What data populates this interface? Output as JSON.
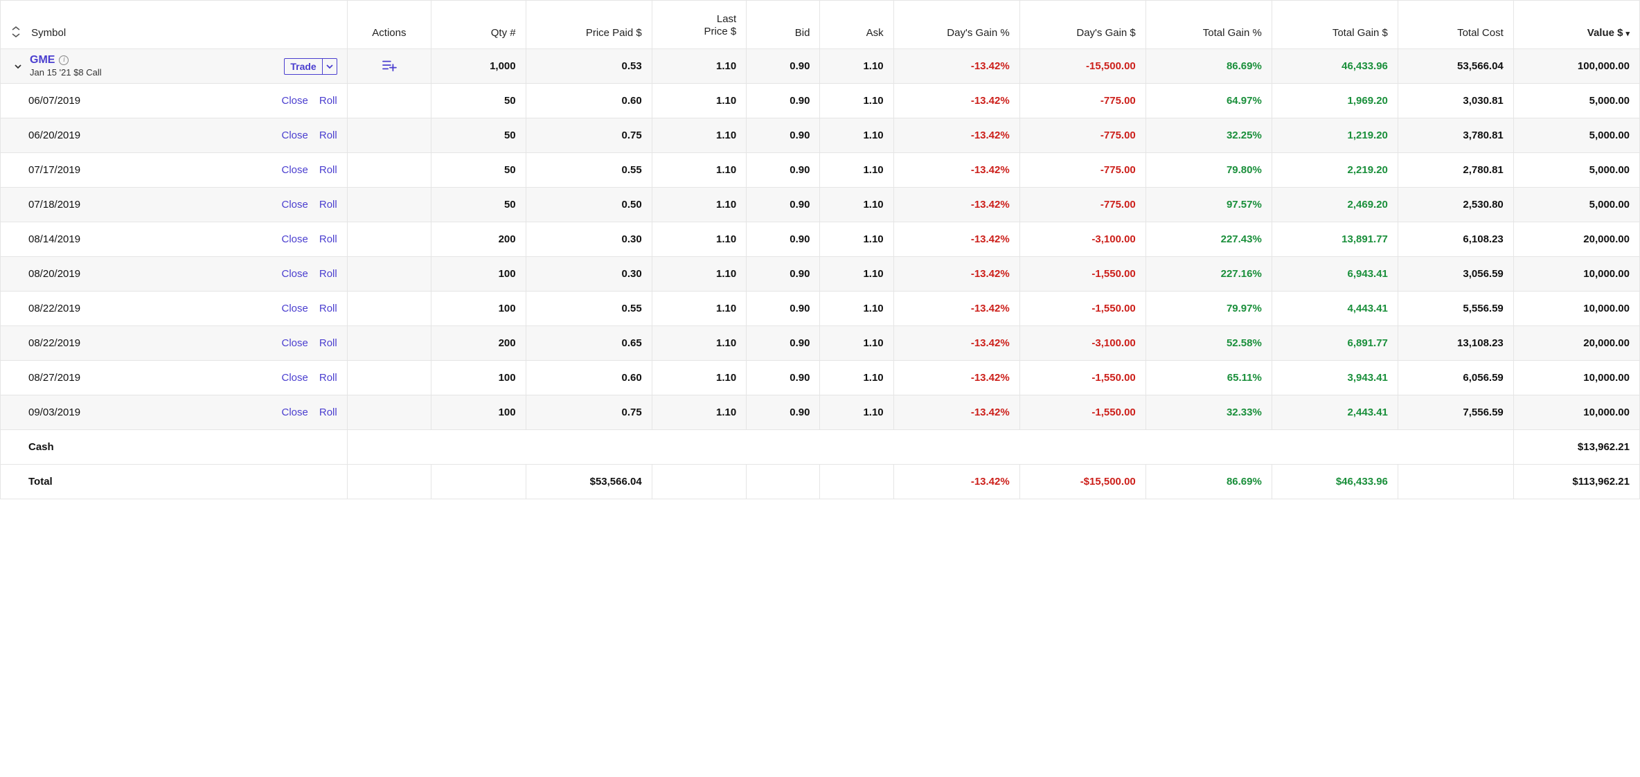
{
  "columns": {
    "symbol": "Symbol",
    "actions": "Actions",
    "qty": "Qty #",
    "price_paid": "Price Paid $",
    "last_price_line1": "Last",
    "last_price_line2": "Price $",
    "bid": "Bid",
    "ask": "Ask",
    "day_gain_pct": "Day's Gain %",
    "day_gain_usd": "Day's Gain $",
    "total_gain_pct": "Total Gain %",
    "total_gain_usd": "Total Gain $",
    "total_cost": "Total Cost",
    "value": "Value $",
    "sort_caret": "▾"
  },
  "actions": {
    "trade": "Trade",
    "close": "Close",
    "roll": "Roll"
  },
  "colors": {
    "link": "#4a3ecf",
    "neg": "#cc1f1a",
    "pos": "#1a8f3b",
    "border": "#e5e5e5",
    "stripe": "#f7f7f7",
    "text": "#111111"
  },
  "parent": {
    "ticker": "GME",
    "description": "Jan 15 '21 $8 Call",
    "qty": "1,000",
    "price_paid": "0.53",
    "last": "1.10",
    "bid": "0.90",
    "ask": "1.10",
    "day_gain_pct": "-13.42%",
    "day_gain_usd": "-15,500.00",
    "total_gain_pct": "86.69%",
    "total_gain_usd": "46,433.96",
    "total_cost": "53,566.04",
    "value": "100,000.00"
  },
  "lots": [
    {
      "date": "06/07/2019",
      "qty": "50",
      "price_paid": "0.60",
      "last": "1.10",
      "bid": "0.90",
      "ask": "1.10",
      "day_gain_pct": "-13.42%",
      "day_gain_usd": "-775.00",
      "total_gain_pct": "64.97%",
      "total_gain_usd": "1,969.20",
      "total_cost": "3,030.81",
      "value": "5,000.00"
    },
    {
      "date": "06/20/2019",
      "qty": "50",
      "price_paid": "0.75",
      "last": "1.10",
      "bid": "0.90",
      "ask": "1.10",
      "day_gain_pct": "-13.42%",
      "day_gain_usd": "-775.00",
      "total_gain_pct": "32.25%",
      "total_gain_usd": "1,219.20",
      "total_cost": "3,780.81",
      "value": "5,000.00"
    },
    {
      "date": "07/17/2019",
      "qty": "50",
      "price_paid": "0.55",
      "last": "1.10",
      "bid": "0.90",
      "ask": "1.10",
      "day_gain_pct": "-13.42%",
      "day_gain_usd": "-775.00",
      "total_gain_pct": "79.80%",
      "total_gain_usd": "2,219.20",
      "total_cost": "2,780.81",
      "value": "5,000.00"
    },
    {
      "date": "07/18/2019",
      "qty": "50",
      "price_paid": "0.50",
      "last": "1.10",
      "bid": "0.90",
      "ask": "1.10",
      "day_gain_pct": "-13.42%",
      "day_gain_usd": "-775.00",
      "total_gain_pct": "97.57%",
      "total_gain_usd": "2,469.20",
      "total_cost": "2,530.80",
      "value": "5,000.00"
    },
    {
      "date": "08/14/2019",
      "qty": "200",
      "price_paid": "0.30",
      "last": "1.10",
      "bid": "0.90",
      "ask": "1.10",
      "day_gain_pct": "-13.42%",
      "day_gain_usd": "-3,100.00",
      "total_gain_pct": "227.43%",
      "total_gain_usd": "13,891.77",
      "total_cost": "6,108.23",
      "value": "20,000.00"
    },
    {
      "date": "08/20/2019",
      "qty": "100",
      "price_paid": "0.30",
      "last": "1.10",
      "bid": "0.90",
      "ask": "1.10",
      "day_gain_pct": "-13.42%",
      "day_gain_usd": "-1,550.00",
      "total_gain_pct": "227.16%",
      "total_gain_usd": "6,943.41",
      "total_cost": "3,056.59",
      "value": "10,000.00"
    },
    {
      "date": "08/22/2019",
      "qty": "100",
      "price_paid": "0.55",
      "last": "1.10",
      "bid": "0.90",
      "ask": "1.10",
      "day_gain_pct": "-13.42%",
      "day_gain_usd": "-1,550.00",
      "total_gain_pct": "79.97%",
      "total_gain_usd": "4,443.41",
      "total_cost": "5,556.59",
      "value": "10,000.00"
    },
    {
      "date": "08/22/2019",
      "qty": "200",
      "price_paid": "0.65",
      "last": "1.10",
      "bid": "0.90",
      "ask": "1.10",
      "day_gain_pct": "-13.42%",
      "day_gain_usd": "-3,100.00",
      "total_gain_pct": "52.58%",
      "total_gain_usd": "6,891.77",
      "total_cost": "13,108.23",
      "value": "20,000.00"
    },
    {
      "date": "08/27/2019",
      "qty": "100",
      "price_paid": "0.60",
      "last": "1.10",
      "bid": "0.90",
      "ask": "1.10",
      "day_gain_pct": "-13.42%",
      "day_gain_usd": "-1,550.00",
      "total_gain_pct": "65.11%",
      "total_gain_usd": "3,943.41",
      "total_cost": "6,056.59",
      "value": "10,000.00"
    },
    {
      "date": "09/03/2019",
      "qty": "100",
      "price_paid": "0.75",
      "last": "1.10",
      "bid": "0.90",
      "ask": "1.10",
      "day_gain_pct": "-13.42%",
      "day_gain_usd": "-1,550.00",
      "total_gain_pct": "32.33%",
      "total_gain_usd": "2,443.41",
      "total_cost": "7,556.59",
      "value": "10,000.00"
    }
  ],
  "footer": {
    "cash_label": "Cash",
    "cash_value": "$13,962.21",
    "total_label": "Total",
    "total_price_paid": "$53,566.04",
    "total_day_gain_pct": "-13.42%",
    "total_day_gain_usd": "-$15,500.00",
    "total_total_gain_pct": "86.69%",
    "total_total_gain_usd": "$46,433.96",
    "total_value": "$113,962.21"
  }
}
